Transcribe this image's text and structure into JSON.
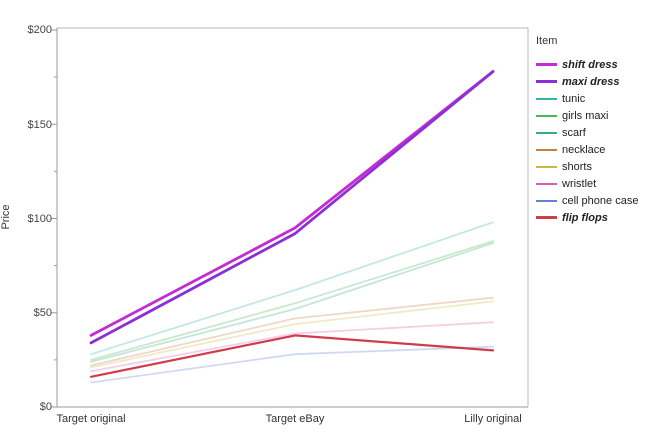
{
  "chart_data": {
    "type": "line",
    "ylabel": "Price",
    "legend_title": "Item",
    "categories": [
      "Target original",
      "Target eBay",
      "Lilly original"
    ],
    "y_axis": {
      "min": 0,
      "max": 200,
      "major_step": 50,
      "minor_step": 25,
      "tick_labels": [
        "$0",
        "$50",
        "$100",
        "$150",
        "$200"
      ]
    },
    "grid": false,
    "legend_position": "right",
    "series": [
      {
        "name": "shift dress",
        "values": [
          38,
          95,
          178
        ],
        "color": "#c42bd3",
        "emphasized": true
      },
      {
        "name": "maxi dress",
        "values": [
          34,
          92,
          178
        ],
        "color": "#8b2fd6",
        "emphasized": true
      },
      {
        "name": "tunic",
        "values": [
          28,
          62,
          98
        ],
        "color": "#36b3a8",
        "emphasized": false
      },
      {
        "name": "girls maxi",
        "values": [
          25,
          55,
          88
        ],
        "color": "#50b45b",
        "emphasized": false
      },
      {
        "name": "scarf",
        "values": [
          24,
          52,
          87
        ],
        "color": "#3aaa85",
        "emphasized": false
      },
      {
        "name": "necklace",
        "values": [
          22,
          47,
          58
        ],
        "color": "#c97f42",
        "emphasized": false
      },
      {
        "name": "shorts",
        "values": [
          21,
          44,
          56
        ],
        "color": "#c6b842",
        "emphasized": false
      },
      {
        "name": "wristlet",
        "values": [
          19,
          39,
          45
        ],
        "color": "#d45fae",
        "emphasized": false
      },
      {
        "name": "cell phone case",
        "values": [
          13,
          28,
          32
        ],
        "color": "#5f82d2",
        "emphasized": false
      },
      {
        "name": "flip flops",
        "values": [
          16,
          38,
          30
        ],
        "color": "#cf3d4b",
        "emphasized": true
      }
    ]
  }
}
